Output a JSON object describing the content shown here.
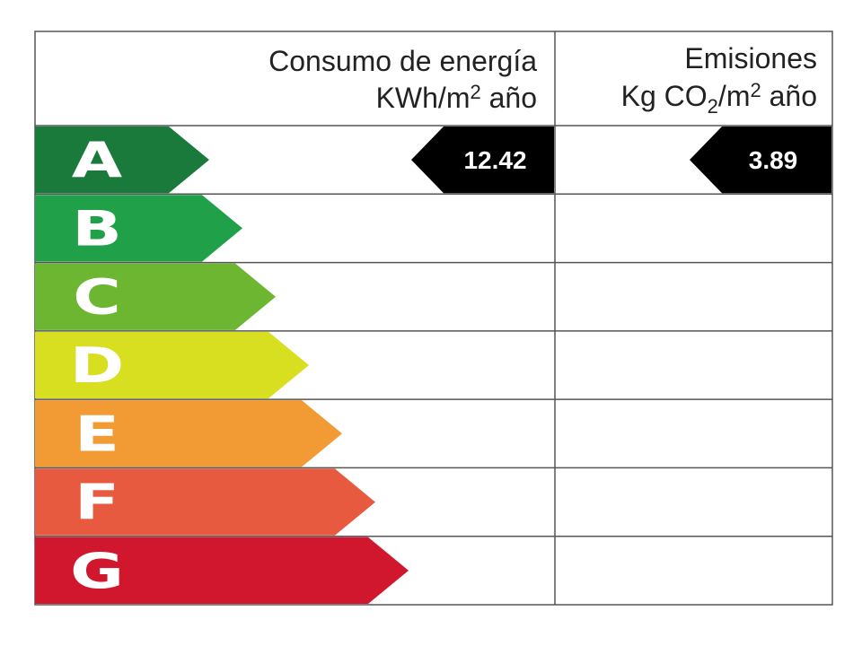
{
  "header": {
    "energy": {
      "title": "Consumo de energía",
      "unit_parts": [
        "KWh/m",
        "2",
        " año"
      ]
    },
    "emissions": {
      "title": "Emisiones",
      "unit_parts": [
        "Kg CO",
        "2",
        "/m",
        "2",
        " año"
      ]
    }
  },
  "ratings": [
    {
      "label": "A",
      "color": "#1a7a3c"
    },
    {
      "label": "B",
      "color": "#1fa049"
    },
    {
      "label": "C",
      "color": "#6cb632"
    },
    {
      "label": "D",
      "color": "#d8df21"
    },
    {
      "label": "E",
      "color": "#f29a33"
    },
    {
      "label": "F",
      "color": "#e85a40"
    },
    {
      "label": "G",
      "color": "#d1172e"
    }
  ],
  "result": {
    "rating_index": 0,
    "energy": 12.42,
    "emissions": 3.89
  }
}
